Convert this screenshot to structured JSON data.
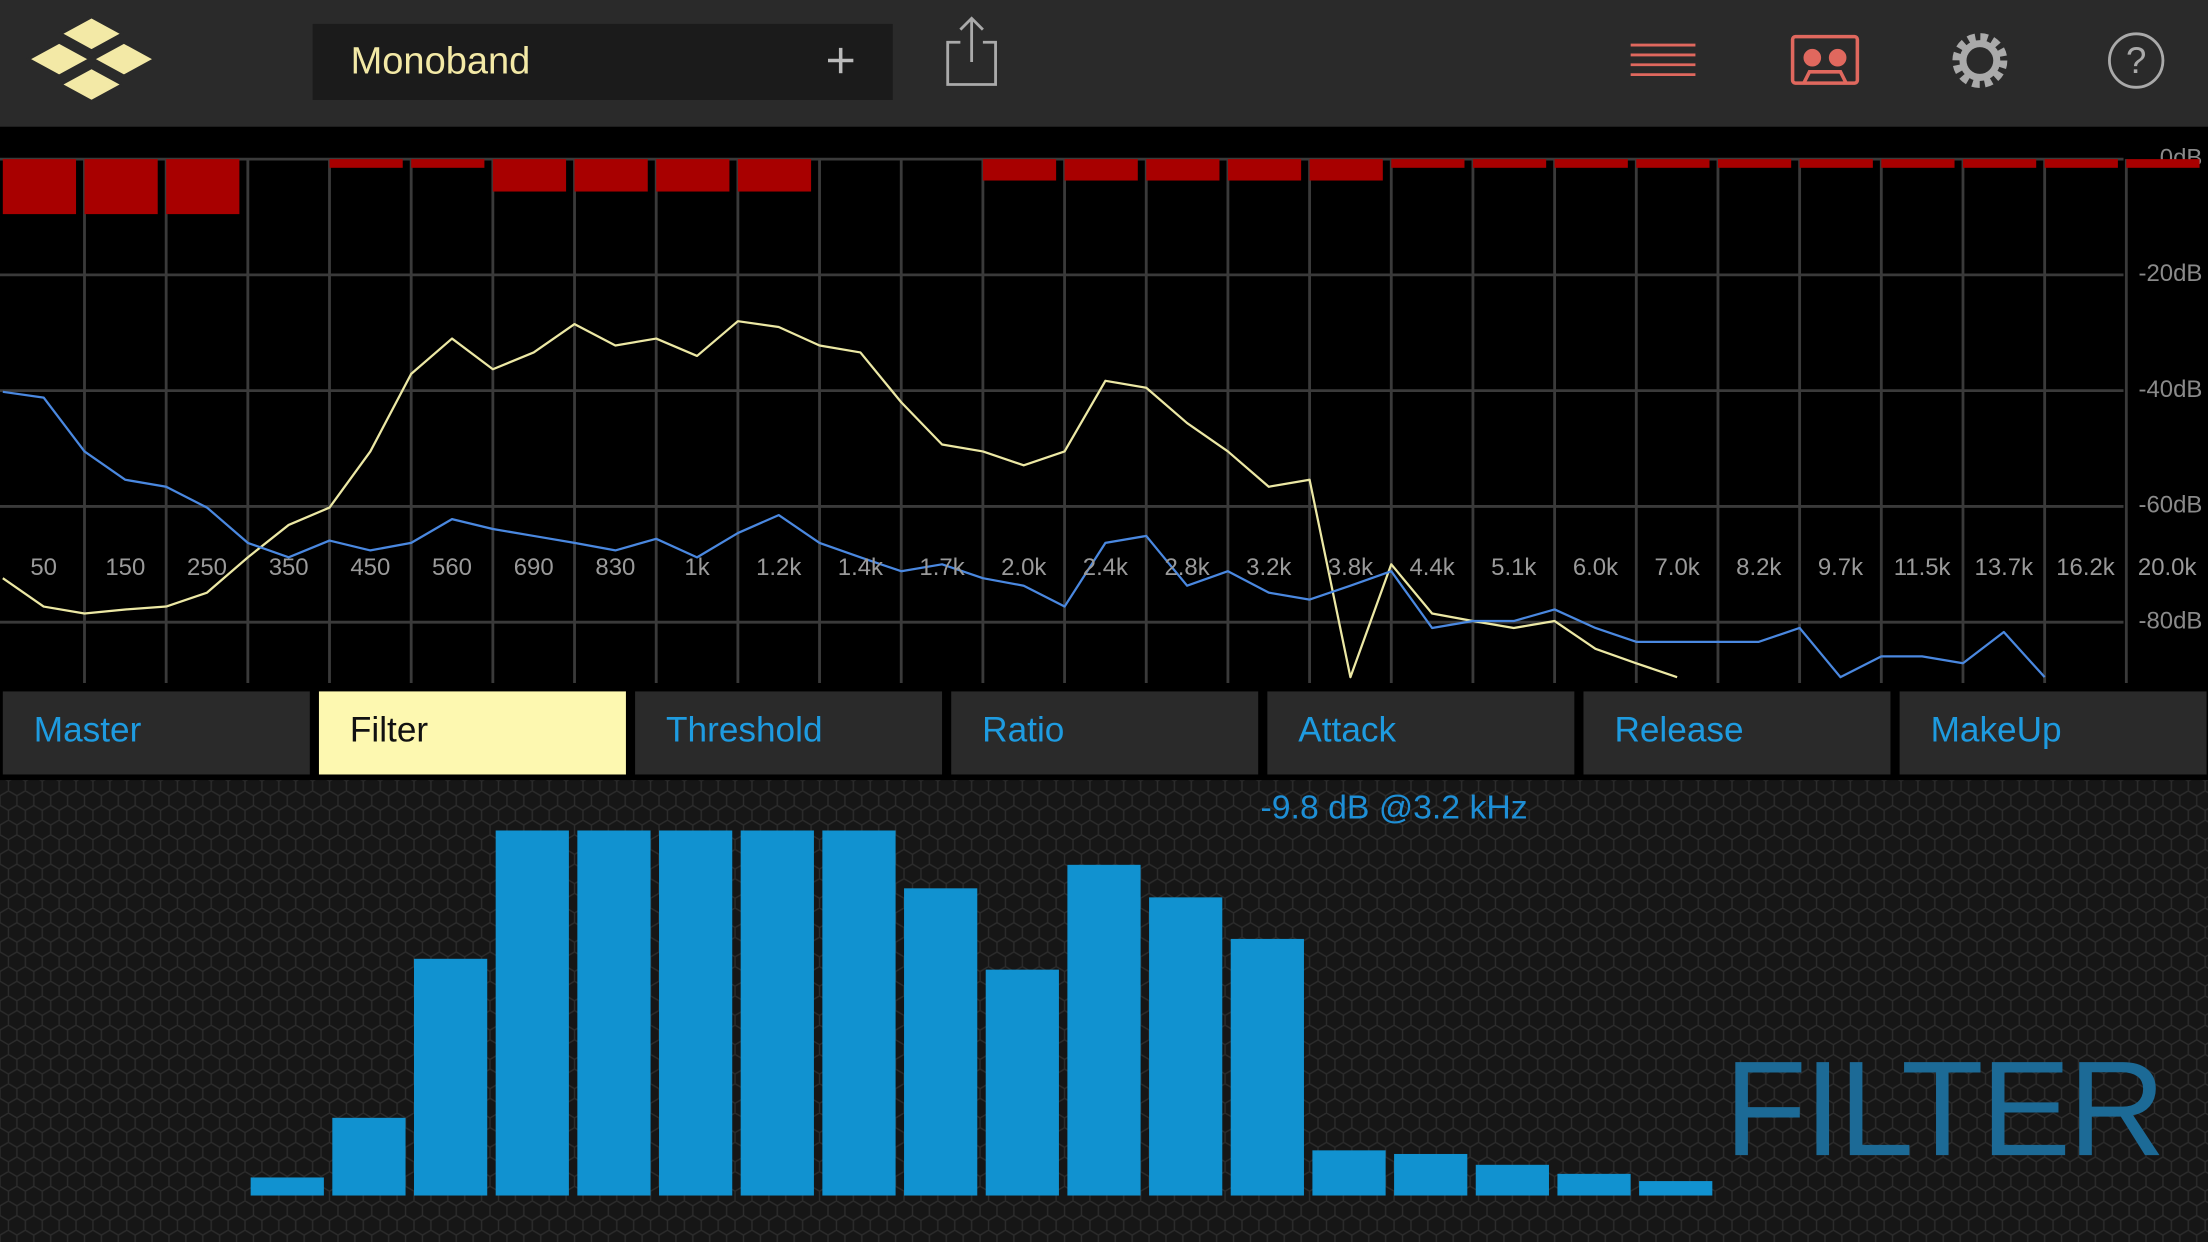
{
  "header": {
    "preset": "Monoband"
  },
  "spectrum": {
    "ylim": [
      -90.5,
      0
    ],
    "yticks": [
      {
        "value": 0,
        "label": "0dB"
      },
      {
        "value": -20,
        "label": "-20dB"
      },
      {
        "value": -40,
        "label": "-40dB"
      },
      {
        "value": -60,
        "label": "-60dB"
      },
      {
        "value": -80,
        "label": "-80dB"
      }
    ],
    "bands": [
      "50",
      "150",
      "250",
      "350",
      "450",
      "560",
      "690",
      "830",
      "1k",
      "1.2k",
      "1.4k",
      "1.7k",
      "2.0k",
      "2.4k",
      "2.8k",
      "3.2k",
      "3.8k",
      "4.4k",
      "5.1k",
      "6.0k",
      "7.0k",
      "8.2k",
      "9.7k",
      "11.5k",
      "13.7k",
      "16.2k",
      "20.0k"
    ],
    "meter": [
      -9.5,
      -9.5,
      -9.5,
      null,
      -1.5,
      -1.5,
      -5.6,
      -5.6,
      -5.6,
      -5.6,
      null,
      null,
      -3.7,
      -3.7,
      -3.7,
      -3.7,
      -3.7,
      -1.5,
      -1.5,
      -1.5,
      -1.5,
      -1.5,
      -1.5,
      -1.5,
      -1.5,
      -1.5,
      -1.5
    ],
    "meter_color": "#a80000",
    "curves": [
      {
        "color": "#ece8a4",
        "values": [
          -72.4,
          -77.3,
          -78.5,
          -77.8,
          -77.3,
          -74.9,
          -68.8,
          -63.2,
          -60.2,
          -50.5,
          -37.1,
          -31.0,
          -36.3,
          -33.4,
          -28.5,
          -32.2,
          -31.0,
          -34.0,
          -28.0,
          -29.0,
          -32.2,
          -33.4,
          -42.0,
          -49.3,
          -50.5,
          -52.9,
          -50.5,
          -38.3,
          -39.5,
          -45.6,
          -50.5,
          -56.6,
          -55.4,
          -89.5,
          -70.0,
          -78.5,
          -79.8,
          -81.0,
          -79.8,
          -84.6,
          -87.1,
          -89.5,
          null,
          null,
          null,
          null,
          null,
          null,
          null,
          null,
          null,
          null,
          null,
          null,
          null
        ]
      },
      {
        "color": "#4a88e0",
        "values": [
          -40.2,
          -41.2,
          -50.5,
          -55.4,
          -56.6,
          -60.2,
          -66.3,
          -68.8,
          -65.9,
          -67.6,
          -66.3,
          -62.2,
          -63.9,
          -65.1,
          -66.3,
          -67.6,
          -65.6,
          -68.8,
          -64.6,
          -61.5,
          -66.3,
          -68.8,
          -71.2,
          -70.0,
          -72.4,
          -73.7,
          -77.3,
          -66.3,
          -65.1,
          -73.7,
          -71.2,
          -74.9,
          -76.1,
          -73.7,
          -71.2,
          -81.0,
          -79.8,
          -79.8,
          -77.8,
          -81.0,
          -83.4,
          -83.4,
          -83.4,
          -83.4,
          -81.0,
          -89.5,
          -85.9,
          -85.9,
          -87.1,
          -81.7,
          -89.5,
          null,
          null,
          null,
          null
        ]
      }
    ]
  },
  "tabs": [
    "Master",
    "Filter",
    "Threshold",
    "Ratio",
    "Attack",
    "Release",
    "MakeUp"
  ],
  "selected_tab": 1,
  "filter": {
    "readout": "-9.8 dB @3.2 kHz",
    "label": "FILTER",
    "ylim": [
      -24,
      0
    ],
    "color": "#1192d0",
    "values": [
      null,
      null,
      null,
      -23.0,
      -19.7,
      -10.9,
      -3.8,
      -3.8,
      -3.8,
      -3.8,
      -3.8,
      -7.0,
      -11.5,
      -5.7,
      -7.5,
      -9.8,
      -21.5,
      -21.7,
      -22.3,
      -22.8,
      -23.2,
      null,
      null,
      null,
      null,
      null,
      null
    ]
  }
}
